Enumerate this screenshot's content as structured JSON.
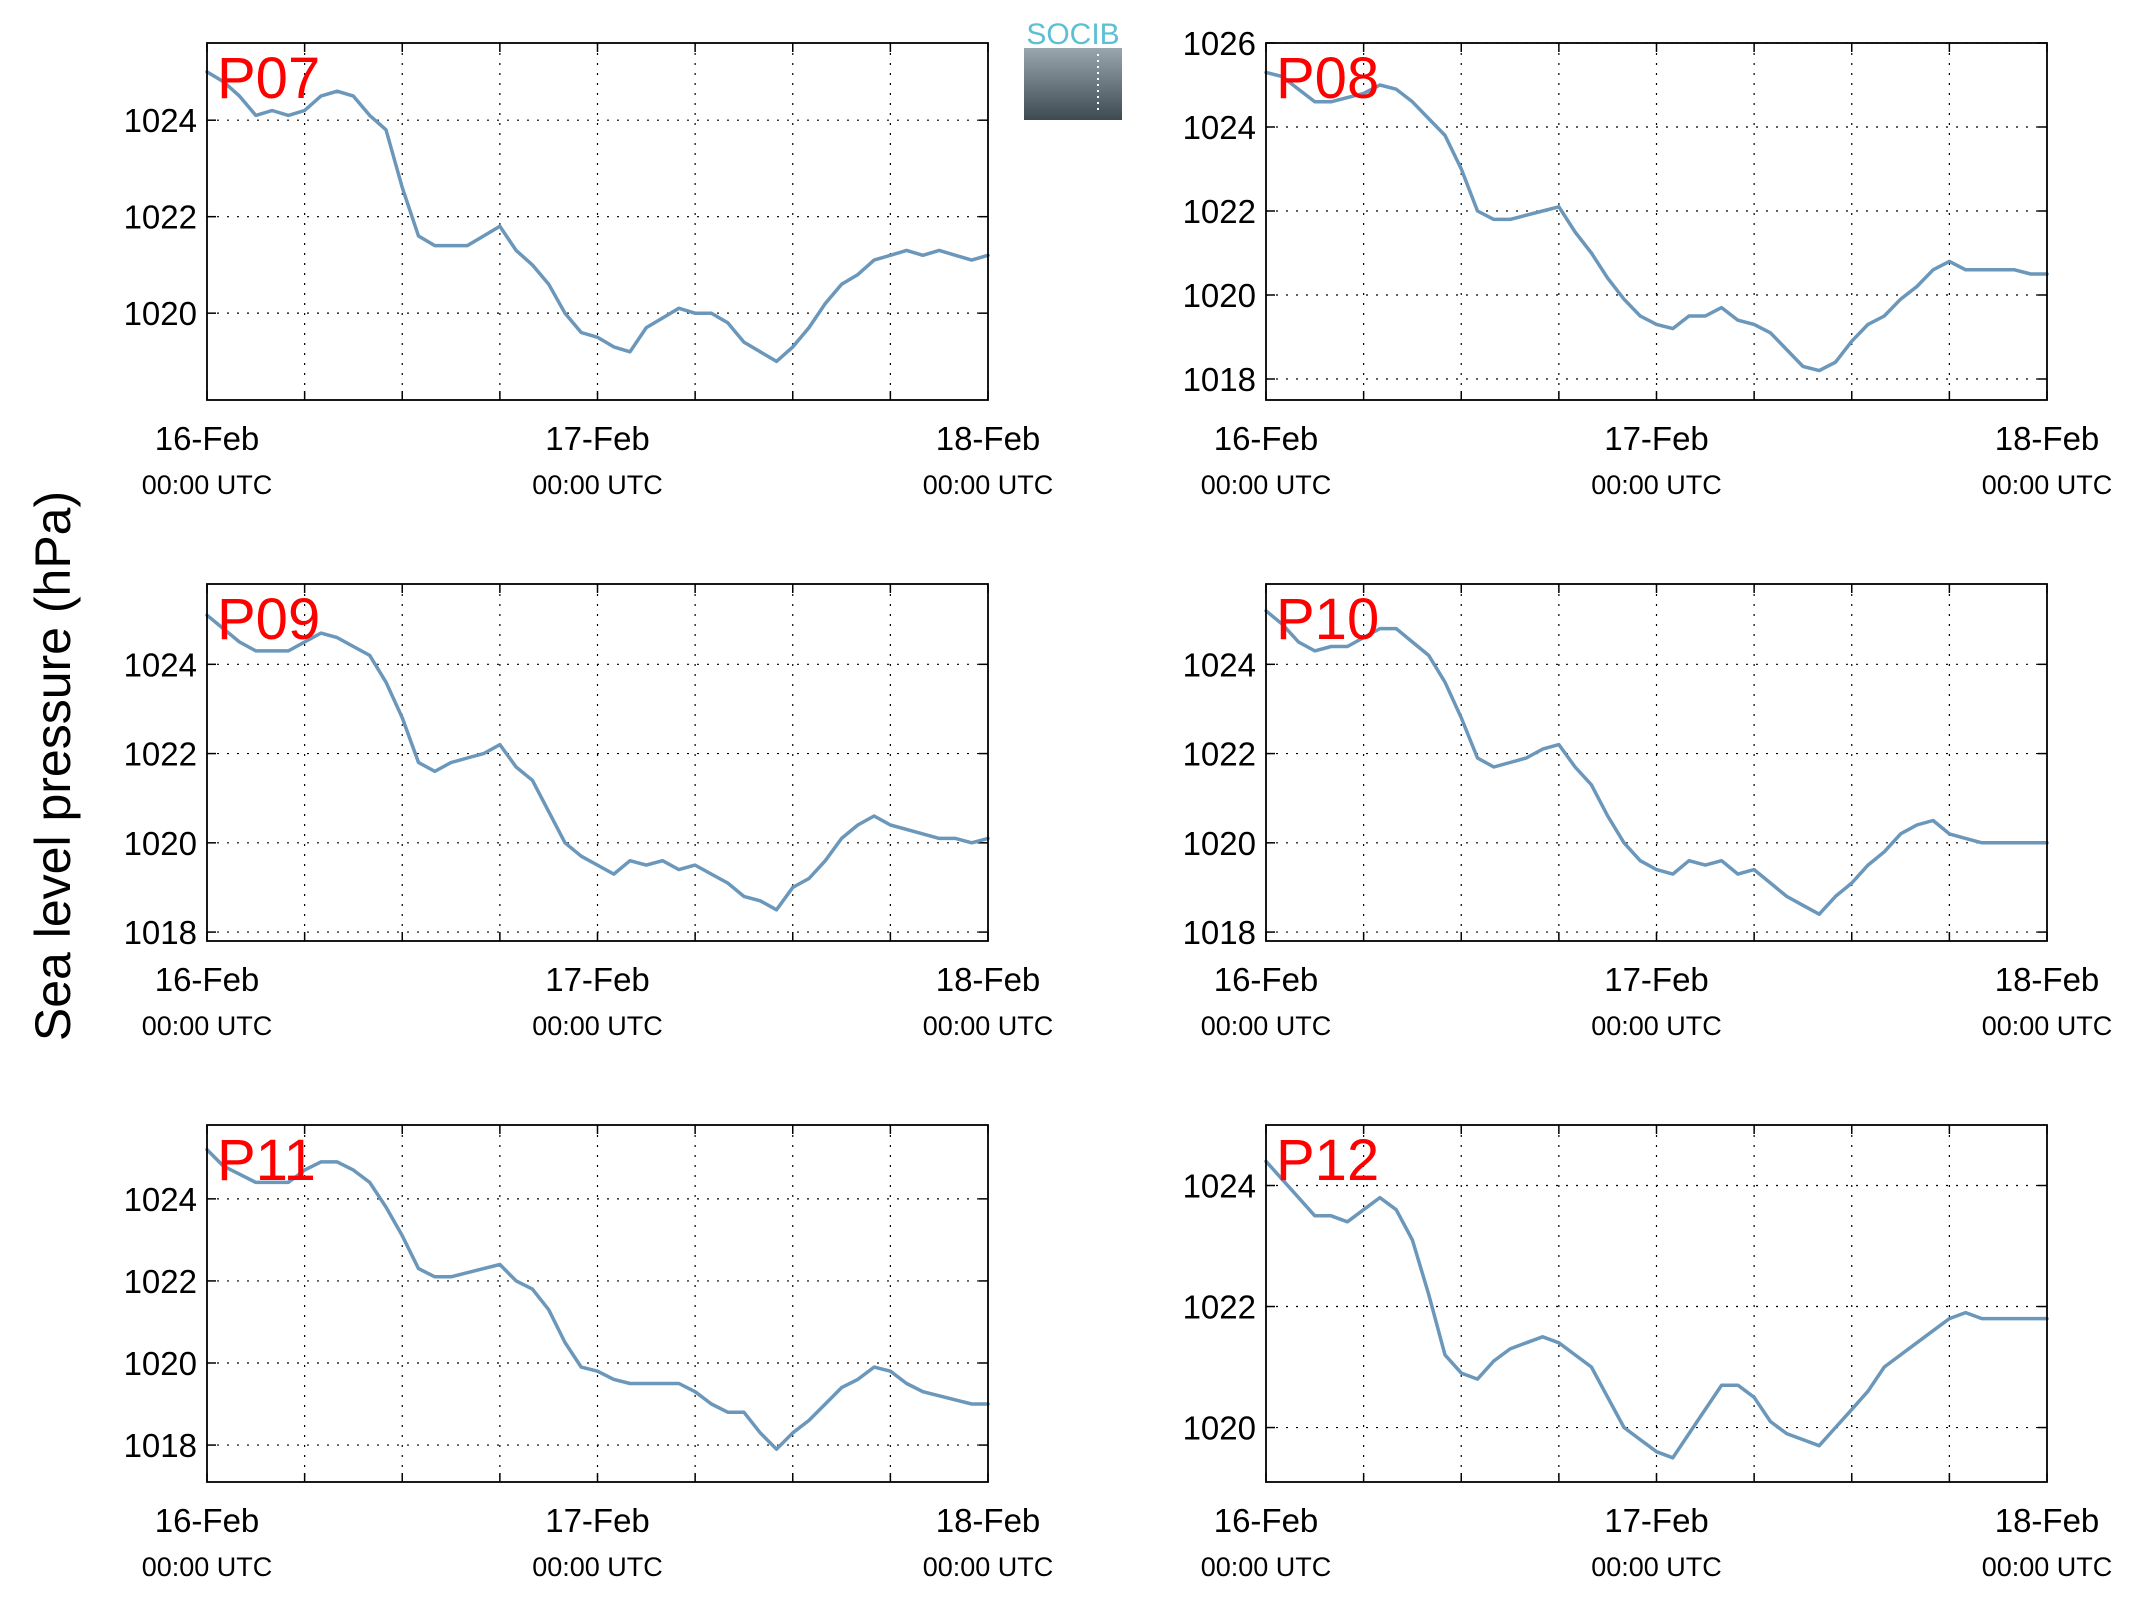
{
  "figure": {
    "ylabel": "Sea level pressure (hPa)",
    "logo_text": "SOCIB"
  },
  "colors": {
    "line": "#6b97bb",
    "station_label": "#ff0000",
    "axis": "#000000",
    "grid": "#000000",
    "logo_top": "#5bc0d3",
    "logo_dark": "#3e4a52"
  },
  "chart_data": [
    {
      "type": "line",
      "title": "P07",
      "xlabel": "",
      "ylabel": "Sea level pressure (hPa)",
      "x_ticks": [
        {
          "date": "16-Feb",
          "time": "00:00 UTC"
        },
        {
          "date": "17-Feb",
          "time": "00:00 UTC"
        },
        {
          "date": "18-Feb",
          "time": "00:00 UTC"
        }
      ],
      "x_range_hours": [
        0,
        48
      ],
      "ylim": [
        1018.2,
        1025.6
      ],
      "yticks": [
        1020,
        1022,
        1024
      ],
      "grid": true,
      "series": [
        {
          "x_hours": [
            0,
            1,
            2,
            3,
            4,
            5,
            6,
            7,
            8,
            9,
            10,
            11,
            12,
            13,
            14,
            15,
            16,
            17,
            18,
            19,
            20,
            21,
            22,
            23,
            24,
            25,
            26,
            27,
            28,
            29,
            30,
            31,
            32,
            33,
            34,
            35,
            36,
            37,
            38,
            39,
            40,
            41,
            42,
            43,
            44,
            45,
            46,
            47,
            48
          ],
          "values": [
            1025.0,
            1024.8,
            1024.5,
            1024.1,
            1024.2,
            1024.1,
            1024.2,
            1024.5,
            1024.6,
            1024.5,
            1024.1,
            1023.8,
            1022.6,
            1021.6,
            1021.4,
            1021.4,
            1021.4,
            1021.6,
            1021.8,
            1021.3,
            1021.0,
            1020.6,
            1020.0,
            1019.6,
            1019.5,
            1019.3,
            1019.2,
            1019.7,
            1019.9,
            1020.1,
            1020.0,
            1020.0,
            1019.8,
            1019.4,
            1019.2,
            1019.0,
            1019.3,
            1019.7,
            1020.2,
            1020.6,
            1020.8,
            1021.1,
            1021.2,
            1021.3,
            1021.2,
            1021.3,
            1021.2,
            1021.1,
            1021.2
          ]
        }
      ]
    },
    {
      "type": "line",
      "title": "P08",
      "xlabel": "",
      "ylabel": "Sea level pressure (hPa)",
      "x_ticks": [
        {
          "date": "16-Feb",
          "time": "00:00 UTC"
        },
        {
          "date": "17-Feb",
          "time": "00:00 UTC"
        },
        {
          "date": "18-Feb",
          "time": "00:00 UTC"
        }
      ],
      "x_range_hours": [
        0,
        48
      ],
      "ylim": [
        1017.5,
        1026.0
      ],
      "yticks": [
        1018,
        1020,
        1022,
        1024,
        1026
      ],
      "grid": true,
      "series": [
        {
          "x_hours": [
            0,
            1,
            2,
            3,
            4,
            5,
            6,
            7,
            8,
            9,
            10,
            11,
            12,
            13,
            14,
            15,
            16,
            17,
            18,
            19,
            20,
            21,
            22,
            23,
            24,
            25,
            26,
            27,
            28,
            29,
            30,
            31,
            32,
            33,
            34,
            35,
            36,
            37,
            38,
            39,
            40,
            41,
            42,
            43,
            44,
            45,
            46,
            47,
            48
          ],
          "values": [
            1025.3,
            1025.2,
            1024.9,
            1024.6,
            1024.6,
            1024.7,
            1024.8,
            1025.0,
            1024.9,
            1024.6,
            1024.2,
            1023.8,
            1023.0,
            1022.0,
            1021.8,
            1021.8,
            1021.9,
            1022.0,
            1022.1,
            1021.5,
            1021.0,
            1020.4,
            1019.9,
            1019.5,
            1019.3,
            1019.2,
            1019.5,
            1019.5,
            1019.7,
            1019.4,
            1019.3,
            1019.1,
            1018.7,
            1018.3,
            1018.2,
            1018.4,
            1018.9,
            1019.3,
            1019.5,
            1019.9,
            1020.2,
            1020.6,
            1020.8,
            1020.6,
            1020.6,
            1020.6,
            1020.6,
            1020.5,
            1020.5
          ]
        }
      ]
    },
    {
      "type": "line",
      "title": "P09",
      "xlabel": "",
      "ylabel": "Sea level pressure (hPa)",
      "x_ticks": [
        {
          "date": "16-Feb",
          "time": "00:00 UTC"
        },
        {
          "date": "17-Feb",
          "time": "00:00 UTC"
        },
        {
          "date": "18-Feb",
          "time": "00:00 UTC"
        }
      ],
      "x_range_hours": [
        0,
        48
      ],
      "ylim": [
        1017.8,
        1025.8
      ],
      "yticks": [
        1018,
        1020,
        1022,
        1024
      ],
      "grid": true,
      "series": [
        {
          "x_hours": [
            0,
            1,
            2,
            3,
            4,
            5,
            6,
            7,
            8,
            9,
            10,
            11,
            12,
            13,
            14,
            15,
            16,
            17,
            18,
            19,
            20,
            21,
            22,
            23,
            24,
            25,
            26,
            27,
            28,
            29,
            30,
            31,
            32,
            33,
            34,
            35,
            36,
            37,
            38,
            39,
            40,
            41,
            42,
            43,
            44,
            45,
            46,
            47,
            48
          ],
          "values": [
            1025.1,
            1024.8,
            1024.5,
            1024.3,
            1024.3,
            1024.3,
            1024.5,
            1024.7,
            1024.6,
            1024.4,
            1024.2,
            1023.6,
            1022.8,
            1021.8,
            1021.6,
            1021.8,
            1021.9,
            1022.0,
            1022.2,
            1021.7,
            1021.4,
            1020.7,
            1020.0,
            1019.7,
            1019.5,
            1019.3,
            1019.6,
            1019.5,
            1019.6,
            1019.4,
            1019.5,
            1019.3,
            1019.1,
            1018.8,
            1018.7,
            1018.5,
            1019.0,
            1019.2,
            1019.6,
            1020.1,
            1020.4,
            1020.6,
            1020.4,
            1020.3,
            1020.2,
            1020.1,
            1020.1,
            1020.0,
            1020.1
          ]
        }
      ]
    },
    {
      "type": "line",
      "title": "P10",
      "xlabel": "",
      "ylabel": "Sea level pressure (hPa)",
      "x_ticks": [
        {
          "date": "16-Feb",
          "time": "00:00 UTC"
        },
        {
          "date": "17-Feb",
          "time": "00:00 UTC"
        },
        {
          "date": "18-Feb",
          "time": "00:00 UTC"
        }
      ],
      "x_range_hours": [
        0,
        48
      ],
      "ylim": [
        1017.8,
        1025.8
      ],
      "yticks": [
        1018,
        1020,
        1022,
        1024
      ],
      "grid": true,
      "series": [
        {
          "x_hours": [
            0,
            1,
            2,
            3,
            4,
            5,
            6,
            7,
            8,
            9,
            10,
            11,
            12,
            13,
            14,
            15,
            16,
            17,
            18,
            19,
            20,
            21,
            22,
            23,
            24,
            25,
            26,
            27,
            28,
            29,
            30,
            31,
            32,
            33,
            34,
            35,
            36,
            37,
            38,
            39,
            40,
            41,
            42,
            43,
            44,
            45,
            46,
            47,
            48
          ],
          "values": [
            1025.2,
            1024.9,
            1024.5,
            1024.3,
            1024.4,
            1024.4,
            1024.6,
            1024.8,
            1024.8,
            1024.5,
            1024.2,
            1023.6,
            1022.8,
            1021.9,
            1021.7,
            1021.8,
            1021.9,
            1022.1,
            1022.2,
            1021.7,
            1021.3,
            1020.6,
            1020.0,
            1019.6,
            1019.4,
            1019.3,
            1019.6,
            1019.5,
            1019.6,
            1019.3,
            1019.4,
            1019.1,
            1018.8,
            1018.6,
            1018.4,
            1018.8,
            1019.1,
            1019.5,
            1019.8,
            1020.2,
            1020.4,
            1020.5,
            1020.2,
            1020.1,
            1020.0,
            1020.0,
            1020.0,
            1020.0,
            1020.0
          ]
        }
      ]
    },
    {
      "type": "line",
      "title": "P11",
      "xlabel": "",
      "ylabel": "Sea level pressure (hPa)",
      "x_ticks": [
        {
          "date": "16-Feb",
          "time": "00:00 UTC"
        },
        {
          "date": "17-Feb",
          "time": "00:00 UTC"
        },
        {
          "date": "18-Feb",
          "time": "00:00 UTC"
        }
      ],
      "x_range_hours": [
        0,
        48
      ],
      "ylim": [
        1017.1,
        1025.8
      ],
      "yticks": [
        1018,
        1020,
        1022,
        1024
      ],
      "grid": true,
      "series": [
        {
          "x_hours": [
            0,
            1,
            2,
            3,
            4,
            5,
            6,
            7,
            8,
            9,
            10,
            11,
            12,
            13,
            14,
            15,
            16,
            17,
            18,
            19,
            20,
            21,
            22,
            23,
            24,
            25,
            26,
            27,
            28,
            29,
            30,
            31,
            32,
            33,
            34,
            35,
            36,
            37,
            38,
            39,
            40,
            41,
            42,
            43,
            44,
            45,
            46,
            47,
            48
          ],
          "values": [
            1025.2,
            1024.8,
            1024.6,
            1024.4,
            1024.4,
            1024.4,
            1024.7,
            1024.9,
            1024.9,
            1024.7,
            1024.4,
            1023.8,
            1023.1,
            1022.3,
            1022.1,
            1022.1,
            1022.2,
            1022.3,
            1022.4,
            1022.0,
            1021.8,
            1021.3,
            1020.5,
            1019.9,
            1019.8,
            1019.6,
            1019.5,
            1019.5,
            1019.5,
            1019.5,
            1019.3,
            1019.0,
            1018.8,
            1018.8,
            1018.3,
            1017.9,
            1018.3,
            1018.6,
            1019.0,
            1019.4,
            1019.6,
            1019.9,
            1019.8,
            1019.5,
            1019.3,
            1019.2,
            1019.1,
            1019.0,
            1019.0
          ]
        }
      ]
    },
    {
      "type": "line",
      "title": "P12",
      "xlabel": "",
      "ylabel": "Sea level pressure (hPa)",
      "x_ticks": [
        {
          "date": "16-Feb",
          "time": "00:00 UTC"
        },
        {
          "date": "17-Feb",
          "time": "00:00 UTC"
        },
        {
          "date": "18-Feb",
          "time": "00:00 UTC"
        }
      ],
      "x_range_hours": [
        0,
        48
      ],
      "ylim": [
        1019.1,
        1025.0
      ],
      "yticks": [
        1020,
        1022,
        1024
      ],
      "grid": true,
      "series": [
        {
          "x_hours": [
            0,
            1,
            2,
            3,
            4,
            5,
            6,
            7,
            8,
            9,
            10,
            11,
            12,
            13,
            14,
            15,
            16,
            17,
            18,
            19,
            20,
            21,
            22,
            23,
            24,
            25,
            26,
            27,
            28,
            29,
            30,
            31,
            32,
            33,
            34,
            35,
            36,
            37,
            38,
            39,
            40,
            41,
            42,
            43,
            44,
            45,
            46,
            47,
            48
          ],
          "values": [
            1024.4,
            1024.1,
            1023.8,
            1023.5,
            1023.5,
            1023.4,
            1023.6,
            1023.8,
            1023.6,
            1023.1,
            1022.2,
            1021.2,
            1020.9,
            1020.8,
            1021.1,
            1021.3,
            1021.4,
            1021.5,
            1021.4,
            1021.2,
            1021.0,
            1020.5,
            1020.0,
            1019.8,
            1019.6,
            1019.5,
            1019.9,
            1020.3,
            1020.7,
            1020.7,
            1020.5,
            1020.1,
            1019.9,
            1019.8,
            1019.7,
            1020.0,
            1020.3,
            1020.6,
            1021.0,
            1021.2,
            1021.4,
            1021.6,
            1021.8,
            1021.9,
            1021.8,
            1021.8,
            1021.8,
            1021.8,
            1021.8
          ]
        }
      ]
    }
  ]
}
